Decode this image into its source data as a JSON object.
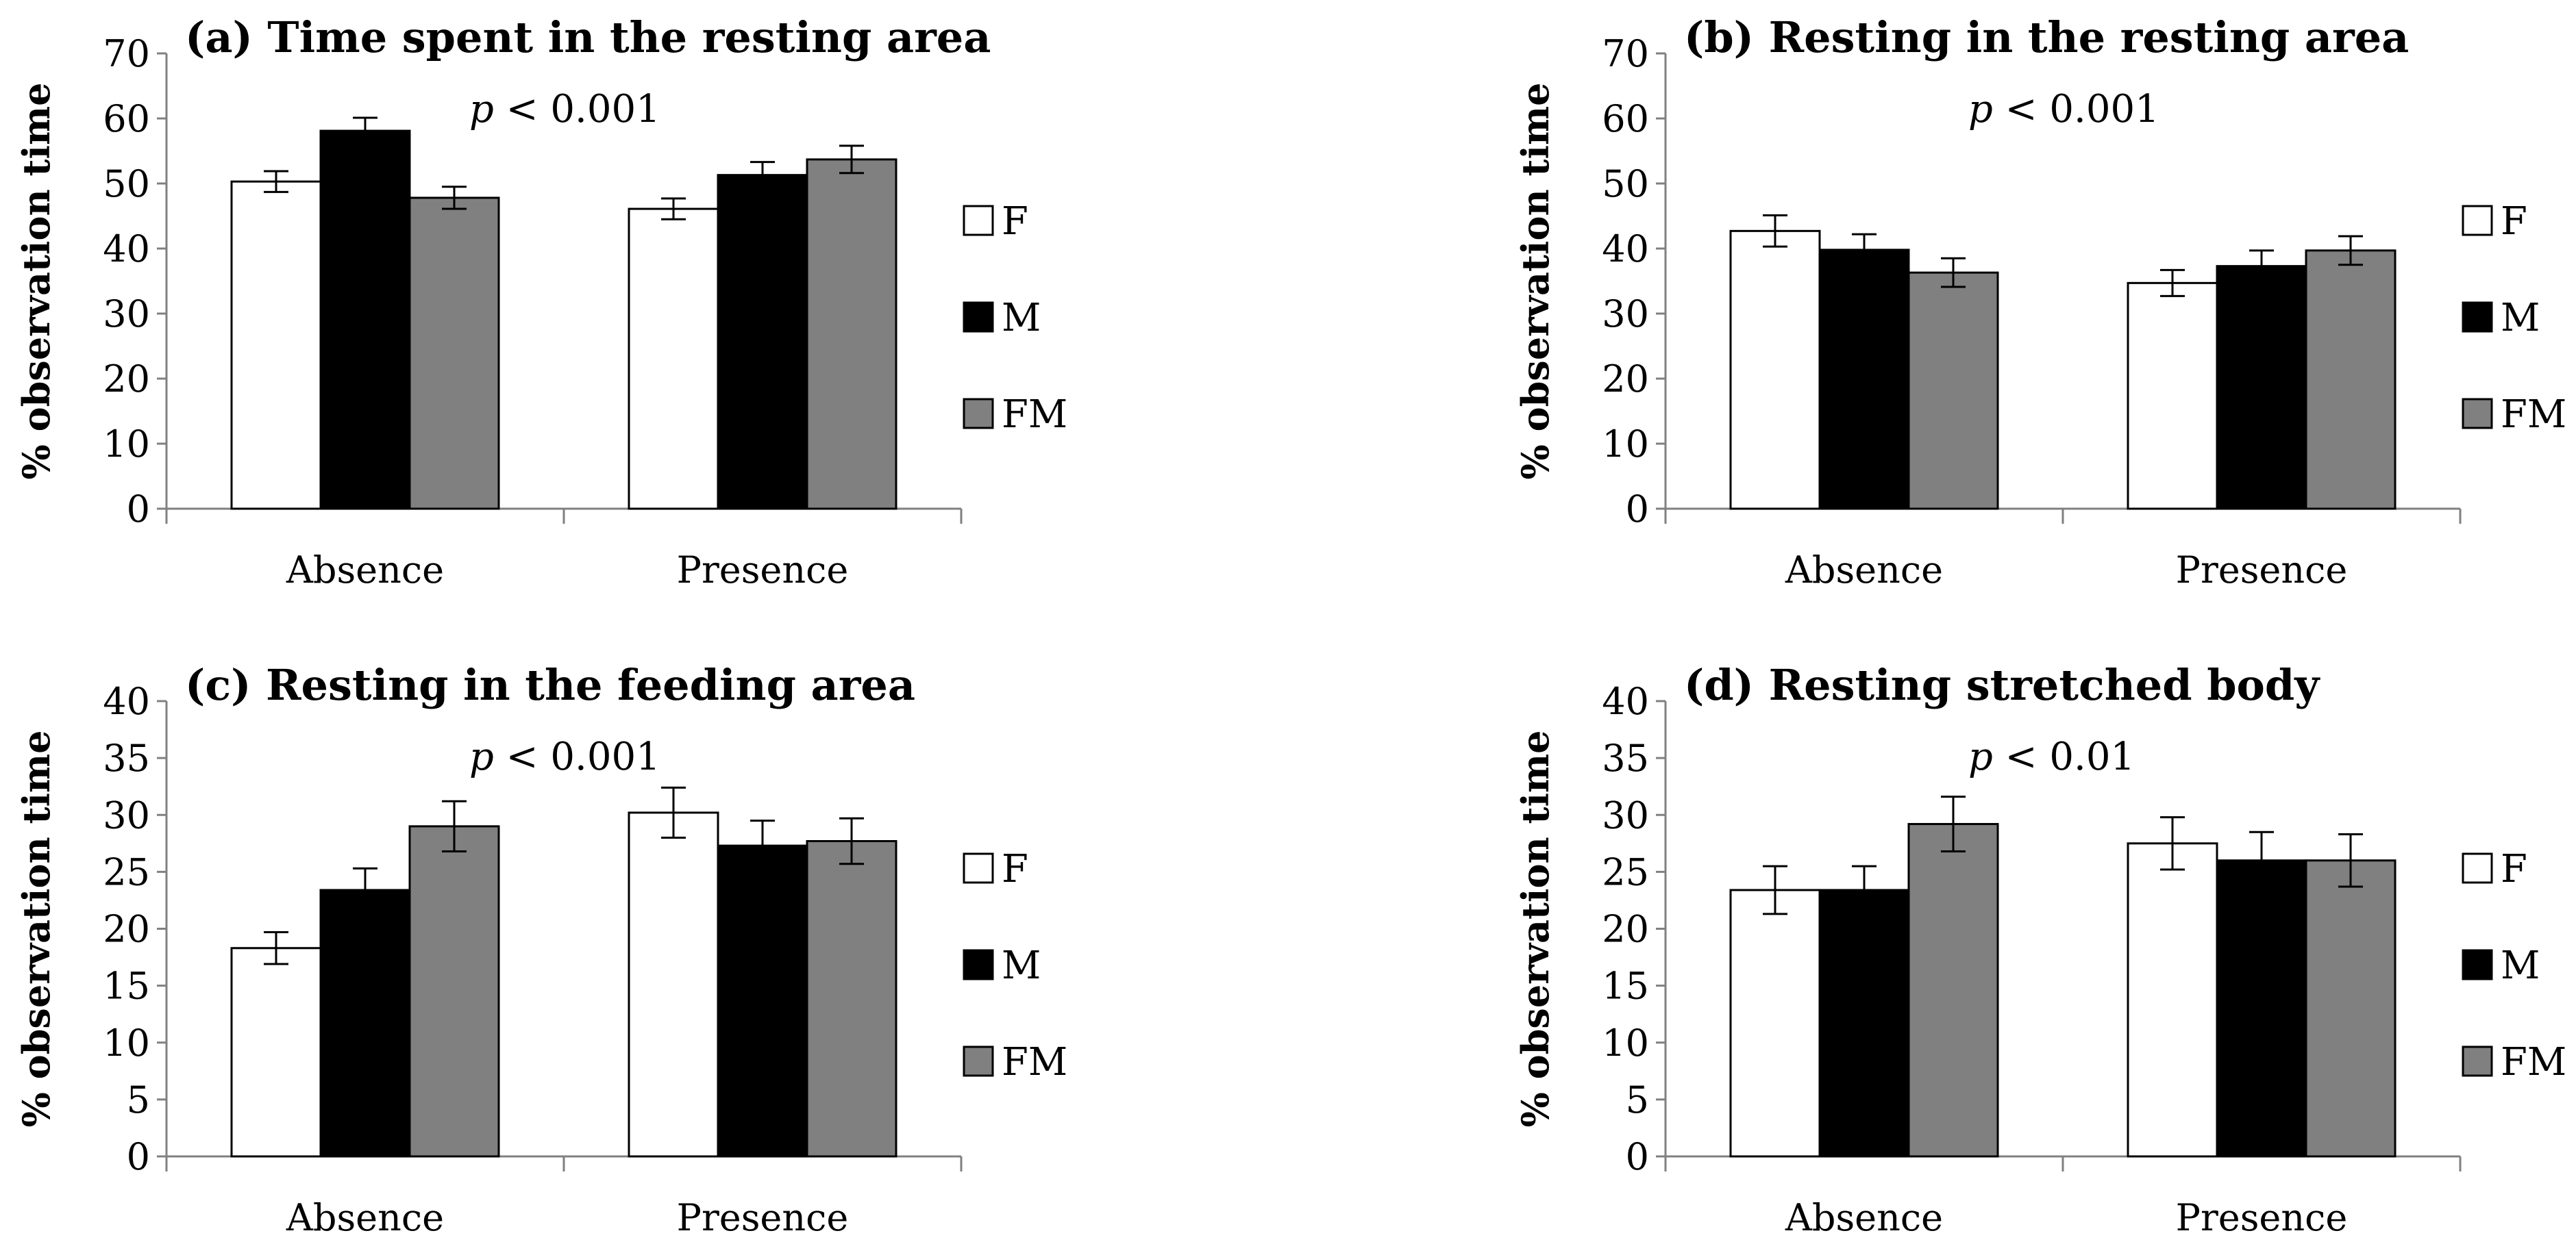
{
  "legend_labels": [
    "F",
    "M",
    "FM"
  ],
  "colors": {
    "F": "#ffffff",
    "M": "#000000",
    "FM": "#808080",
    "axis": "#808080",
    "outline": "#000000"
  },
  "chart_data": [
    {
      "type": "bar",
      "title": "(a) Time spent in the resting area",
      "annotation": {
        "italic": "p",
        "text": " < 0.001"
      },
      "ylabel": "% observation time",
      "ylim": [
        0,
        70
      ],
      "yticks": [
        0,
        10,
        20,
        30,
        40,
        50,
        60,
        70
      ],
      "categories": [
        "Absence",
        "Presence"
      ],
      "legend_position": "right",
      "series": [
        {
          "name": "F",
          "values": [
            50.3,
            46.1
          ],
          "errors": [
            1.6,
            1.6
          ]
        },
        {
          "name": "M",
          "values": [
            58.1,
            51.3
          ],
          "errors": [
            2.0,
            2.0
          ]
        },
        {
          "name": "FM",
          "values": [
            47.8,
            53.7
          ],
          "errors": [
            1.7,
            2.1
          ]
        }
      ]
    },
    {
      "type": "bar",
      "title": "(b) Resting in the resting area",
      "annotation": {
        "italic": "p",
        "text": " < 0.001"
      },
      "ylabel": "% observation time",
      "ylim": [
        0,
        70
      ],
      "yticks": [
        0,
        10,
        20,
        30,
        40,
        50,
        60,
        70
      ],
      "categories": [
        "Absence",
        "Presence"
      ],
      "legend_position": "right",
      "series": [
        {
          "name": "F",
          "values": [
            42.7,
            34.7
          ],
          "errors": [
            2.4,
            2.0
          ]
        },
        {
          "name": "M",
          "values": [
            39.8,
            37.3
          ],
          "errors": [
            2.4,
            2.4
          ]
        },
        {
          "name": "FM",
          "values": [
            36.3,
            39.7
          ],
          "errors": [
            2.2,
            2.2
          ]
        }
      ]
    },
    {
      "type": "bar",
      "title": "(c) Resting in the feeding area",
      "annotation": {
        "italic": "p",
        "text": " < 0.001"
      },
      "ylabel": "% observation time",
      "ylim": [
        0,
        40
      ],
      "yticks": [
        0,
        5,
        10,
        15,
        20,
        25,
        30,
        35,
        40
      ],
      "categories": [
        "Absence",
        "Presence"
      ],
      "legend_position": "right",
      "series": [
        {
          "name": "F",
          "values": [
            18.3,
            30.2
          ],
          "errors": [
            1.4,
            2.2
          ]
        },
        {
          "name": "M",
          "values": [
            23.4,
            27.3
          ],
          "errors": [
            1.9,
            2.2
          ]
        },
        {
          "name": "FM",
          "values": [
            29.0,
            27.7
          ],
          "errors": [
            2.2,
            2.0
          ]
        }
      ]
    },
    {
      "type": "bar",
      "title": "(d) Resting stretched body",
      "annotation": {
        "italic": "p",
        "text": " < 0.01"
      },
      "ylabel": "% observation time",
      "ylim": [
        0,
        40
      ],
      "yticks": [
        0,
        5,
        10,
        15,
        20,
        25,
        30,
        35,
        40
      ],
      "categories": [
        "Absence",
        "Presence"
      ],
      "legend_position": "right",
      "series": [
        {
          "name": "F",
          "values": [
            23.4,
            27.5
          ],
          "errors": [
            2.1,
            2.3
          ]
        },
        {
          "name": "M",
          "values": [
            23.4,
            26.0
          ],
          "errors": [
            2.1,
            2.5
          ]
        },
        {
          "name": "FM",
          "values": [
            29.2,
            26.0
          ],
          "errors": [
            2.4,
            2.3
          ]
        }
      ]
    }
  ]
}
